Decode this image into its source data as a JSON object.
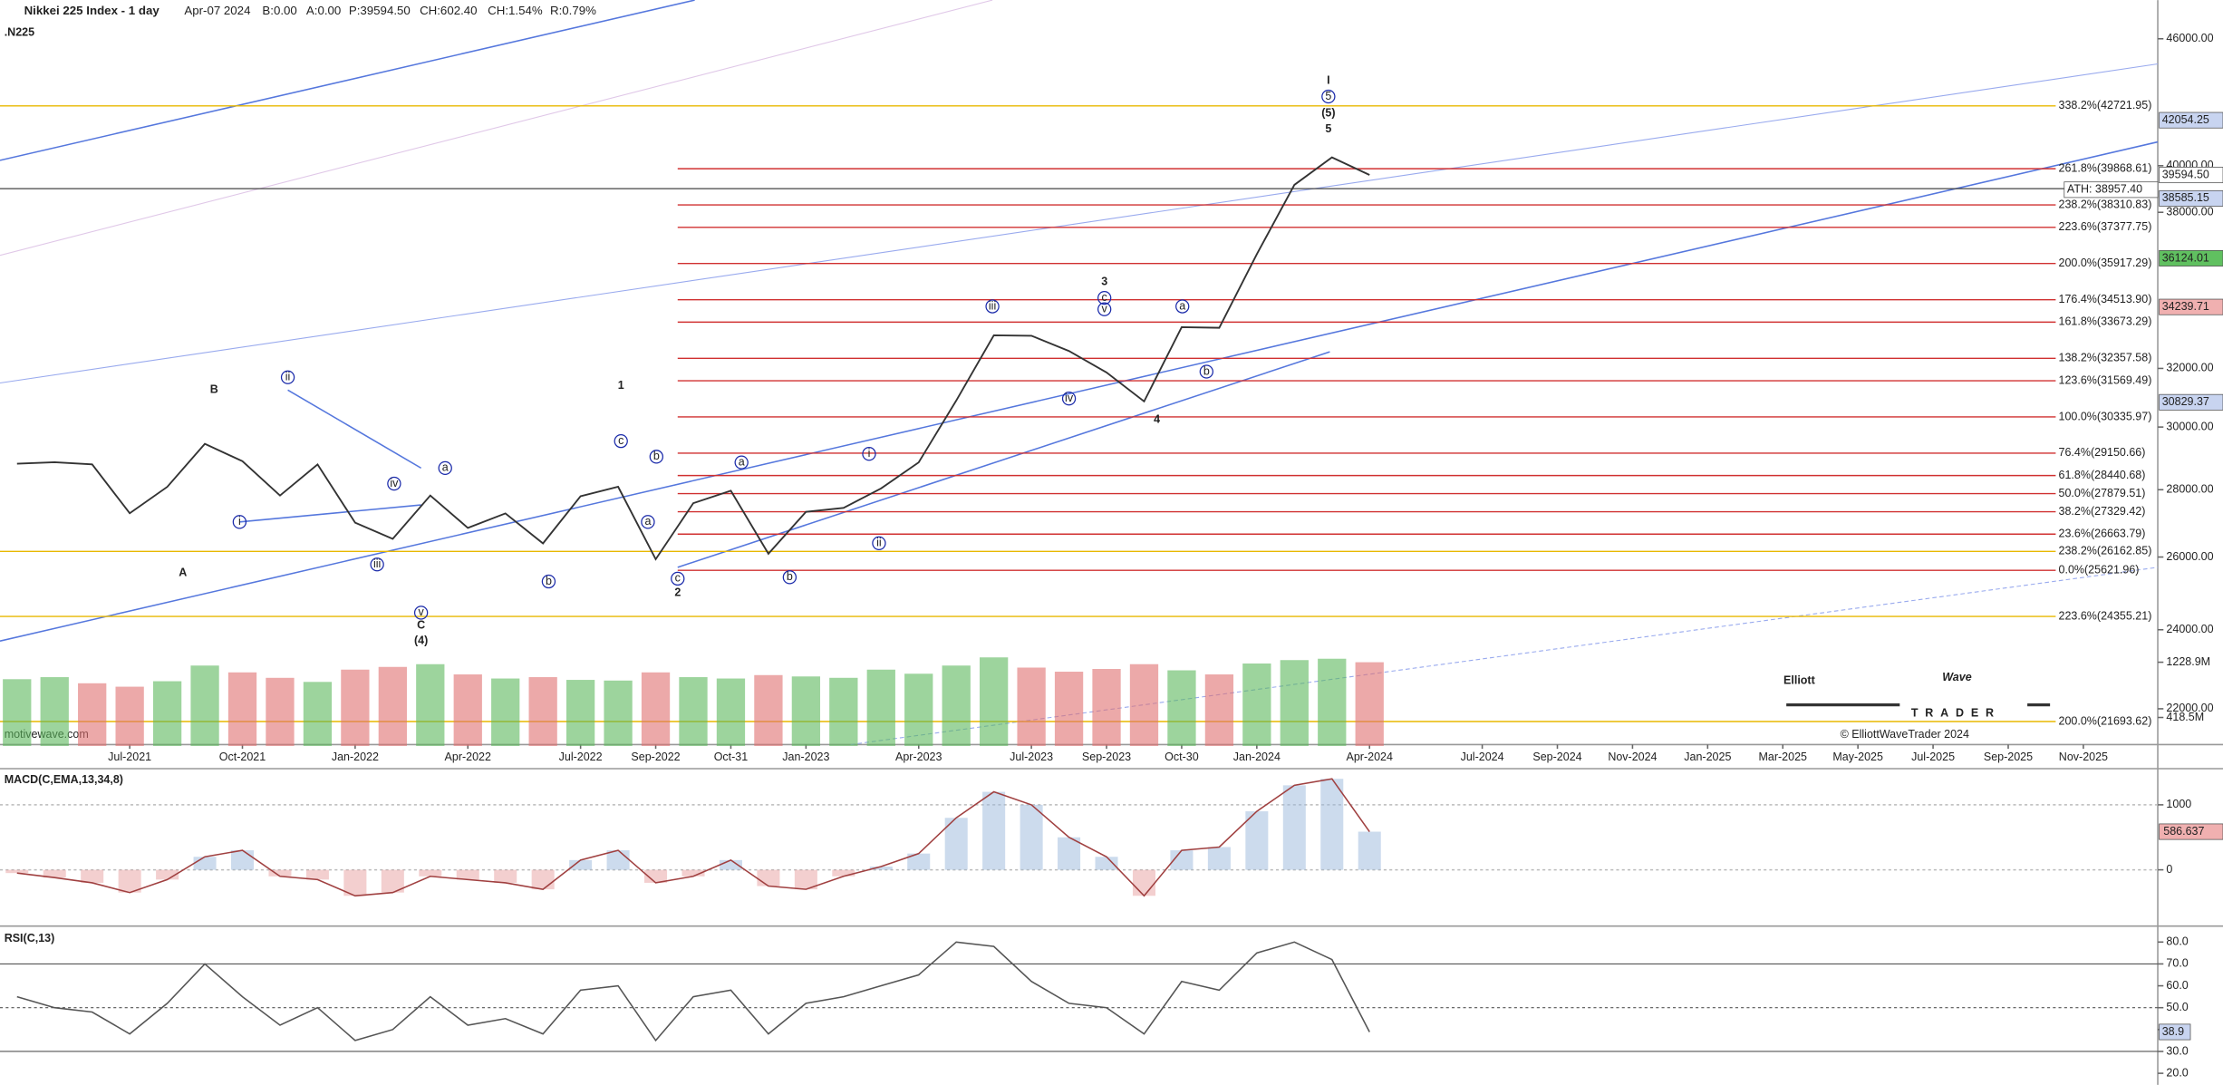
{
  "header": {
    "title": "Nikkei 225 Index - 1 day",
    "symbol": ".N225",
    "date": "Apr-07 2024",
    "bid": "B:0.00",
    "ask": "A:0.00",
    "price": "P:39594.50",
    "change": "CH:602.40",
    "change_pct": "CH:1.54%",
    "range": "R:0.79%"
  },
  "watermark": "motivewave.com",
  "logo": {
    "name1": "Elliott",
    "name2": "Wave",
    "name3": "TRADER",
    "copyright": "© ElliottWaveTrader 2024"
  },
  "chart_data": [
    {
      "type": "line",
      "color": "#333333",
      "log_scale": true,
      "categories": [
        null,
        null,
        null,
        "Jul-2021",
        null,
        null,
        "Oct-2021",
        null,
        null,
        "Jan-2022",
        null,
        null,
        "Apr-2022",
        null,
        null,
        "Jul-2022",
        null,
        "Sep-2022",
        null,
        "Oct-31",
        null,
        "Jan-2023",
        null,
        null,
        "Apr-2023",
        null,
        null,
        "Jul-2023",
        null,
        "Sep-2023",
        null,
        "Oct-30",
        null,
        "Jan-2024",
        null,
        null,
        "Apr-2024",
        null,
        null,
        "Jul-2024",
        null,
        "Sep-2024",
        null,
        "Nov-2024",
        null,
        "Jan-2025",
        null,
        "Mar-2025",
        null,
        "May-2025",
        null,
        "Jul-2025",
        null,
        "Sep-2025",
        null,
        "Nov-2025"
      ],
      "values": [
        28812,
        28860,
        28791,
        27283,
        28089,
        29452,
        28892,
        27821,
        28791,
        27001,
        26526,
        27821,
        26847,
        27279,
        26393,
        27801,
        28091,
        25937,
        27587,
        27968,
        26094,
        27327,
        27445,
        28041,
        28856,
        30887,
        33189,
        33172,
        32619,
        31857,
        30858,
        33486,
        33464,
        36286,
        39166,
        40369,
        39594.5,
        null,
        null,
        null,
        null,
        null,
        null,
        null,
        null,
        null,
        null,
        null,
        null,
        null,
        null,
        null,
        null,
        null,
        null,
        null
      ],
      "ylim": [
        21150,
        48000
      ],
      "yticks": [
        {
          "value": 22000,
          "label": "22000.00"
        },
        {
          "value": 24000,
          "label": "24000.00"
        },
        {
          "value": 26000,
          "label": "26000.00"
        },
        {
          "value": 28000,
          "label": "28000.00"
        },
        {
          "value": 30000,
          "label": "30000.00"
        },
        {
          "value": 32000,
          "label": "32000.00"
        },
        {
          "value": 38000,
          "label": "38000.00"
        },
        {
          "value": 40000,
          "label": "40000.00"
        },
        {
          "value": 46000,
          "label": "46000.00"
        }
      ],
      "fib_levels": [
        {
          "value": 42721.95,
          "label": "338.2%(42721.95)",
          "color": "#e8b800"
        },
        {
          "value": 39868.61,
          "label": "261.8%(39868.61)",
          "color": "#d03030"
        },
        {
          "value": 38310.83,
          "label": "238.2%(38310.83)",
          "color": "#d03030"
        },
        {
          "value": 37377.75,
          "label": "223.6%(37377.75)",
          "color": "#d03030"
        },
        {
          "value": 35917.29,
          "label": "200.0%(35917.29)",
          "color": "#d03030"
        },
        {
          "value": 34513.9,
          "label": "176.4%(34513.90)",
          "color": "#d03030"
        },
        {
          "value": 33673.29,
          "label": "161.8%(33673.29)",
          "color": "#d03030"
        },
        {
          "value": 32357.58,
          "label": "138.2%(32357.58)",
          "color": "#d03030"
        },
        {
          "value": 31569.49,
          "label": "123.6%(31569.49)",
          "color": "#d03030"
        },
        {
          "value": 30335.97,
          "label": "100.0%(30335.97)",
          "color": "#d03030"
        },
        {
          "value": 29150.66,
          "label": "76.4%(29150.66)",
          "color": "#d03030"
        },
        {
          "value": 28440.68,
          "label": "61.8%(28440.68)",
          "color": "#d03030"
        },
        {
          "value": 27879.51,
          "label": "50.0%(27879.51)",
          "color": "#d03030"
        },
        {
          "value": 27329.42,
          "label": "38.2%(27329.42)",
          "color": "#d03030"
        },
        {
          "value": 26663.79,
          "label": "23.6%(26663.79)",
          "color": "#d03030"
        },
        {
          "value": 26162.85,
          "label": "238.2%(26162.85)",
          "color": "#e8b800"
        },
        {
          "value": 25621.96,
          "label": "0.0%(25621.96)",
          "color": "#d03030"
        },
        {
          "value": 24355.21,
          "label": "223.6%(24355.21)",
          "color": "#e8b800"
        },
        {
          "value": 21693.62,
          "label": "200.0%(21693.62)",
          "color": "#e8b800"
        }
      ],
      "price_markers": [
        {
          "value": 42054.25,
          "label": "42054.25",
          "color": "#c8d4f0"
        },
        {
          "value": 39594.5,
          "label": "39594.50",
          "color": "#ffffff"
        },
        {
          "value": 38957.4,
          "label": "ATH: 38957.40",
          "color": "#ffffff"
        },
        {
          "value": 38585.15,
          "label": "38585.15",
          "color": "#c8d4f0"
        },
        {
          "value": 36124.01,
          "label": "36124.01",
          "color": "#60c060"
        },
        {
          "value": 34239.71,
          "label": "34239.71",
          "color": "#f0b0b0"
        },
        {
          "value": 30829.37,
          "label": "30829.37",
          "color": "#c8d4f0"
        }
      ],
      "wave_labels": [
        "A",
        "B",
        "C",
        "(4)",
        "1",
        "2",
        "3",
        "4",
        "5",
        "(5)",
        "I"
      ],
      "circled_labels": [
        "i",
        "ii",
        "iii",
        "iv",
        "v",
        "a",
        "b",
        "c",
        "b",
        "a",
        "c",
        "a",
        "b",
        "i",
        "ii",
        "iii",
        "iv",
        "v",
        "c",
        "a",
        "b",
        "5"
      ]
    },
    {
      "type": "bar",
      "up_color": "#5cb85c",
      "down_color": "#e07070",
      "values": [
        980,
        1010,
        920,
        870,
        950,
        1180,
        1080,
        1000,
        940,
        1120,
        1160,
        1200,
        1050,
        990,
        1010,
        970,
        960,
        1080,
        1010,
        990,
        1040,
        1020,
        1000,
        1120,
        1060,
        1180,
        1300,
        1150,
        1090,
        1130,
        1200,
        1110,
        1050,
        1210,
        1260,
        1280,
        1228.9,
        null,
        null,
        null,
        null,
        null,
        null,
        null,
        null,
        null,
        null,
        null,
        null,
        null,
        null,
        null,
        null,
        null,
        null,
        null
      ],
      "ylim": [
        0,
        1685
      ],
      "yticks": [
        {
          "value": 1228.9,
          "label": "1228.9M"
        },
        {
          "value": 418.5,
          "label": "418.5M"
        }
      ]
    },
    {
      "type": "line",
      "title": "MACD(C,EMA,13,34,8)",
      "color": "#a04040",
      "values": [
        -50,
        -120,
        -200,
        -350,
        -150,
        200,
        300,
        -100,
        -150,
        -400,
        -350,
        -100,
        -150,
        -200,
        -300,
        150,
        300,
        -200,
        -100,
        150,
        -250,
        -300,
        -100,
        50,
        250,
        800,
        1200,
        1000,
        500,
        200,
        -400,
        300,
        350,
        900,
        1300,
        1400,
        586.637,
        null,
        null,
        null,
        null,
        null,
        null,
        null,
        null,
        null,
        null,
        null,
        null,
        null,
        null,
        null,
        null,
        null,
        null,
        null
      ],
      "ylim": [
        -822,
        1556
      ],
      "yticks": [
        1000,
        0
      ]
    },
    {
      "type": "line",
      "title": "RSI(C,13)",
      "color": "#555555",
      "values": [
        55,
        50,
        48,
        38,
        52,
        70,
        55,
        42,
        50,
        35,
        40,
        55,
        42,
        45,
        38,
        58,
        60,
        35,
        55,
        58,
        38,
        52,
        55,
        60,
        65,
        80,
        78,
        62,
        52,
        50,
        38,
        62,
        58,
        75,
        80,
        72,
        38.9,
        null,
        null,
        null,
        null,
        null,
        null,
        null,
        null,
        null,
        null,
        null,
        null,
        null,
        null,
        null,
        null,
        null,
        null,
        null
      ],
      "ylim": [
        14.7,
        87.3
      ],
      "yticks": [
        {
          "value": 80,
          "label": "80.0"
        },
        {
          "value": 70,
          "label": "70.0"
        },
        {
          "value": 60,
          "label": "60.0"
        },
        {
          "value": 50,
          "label": "50.0"
        },
        {
          "value": 40,
          "label": "40.0"
        },
        {
          "value": 30,
          "label": "30.0"
        },
        {
          "value": 20,
          "label": "20.0"
        }
      ],
      "levels": [
        70,
        50,
        30
      ]
    }
  ]
}
